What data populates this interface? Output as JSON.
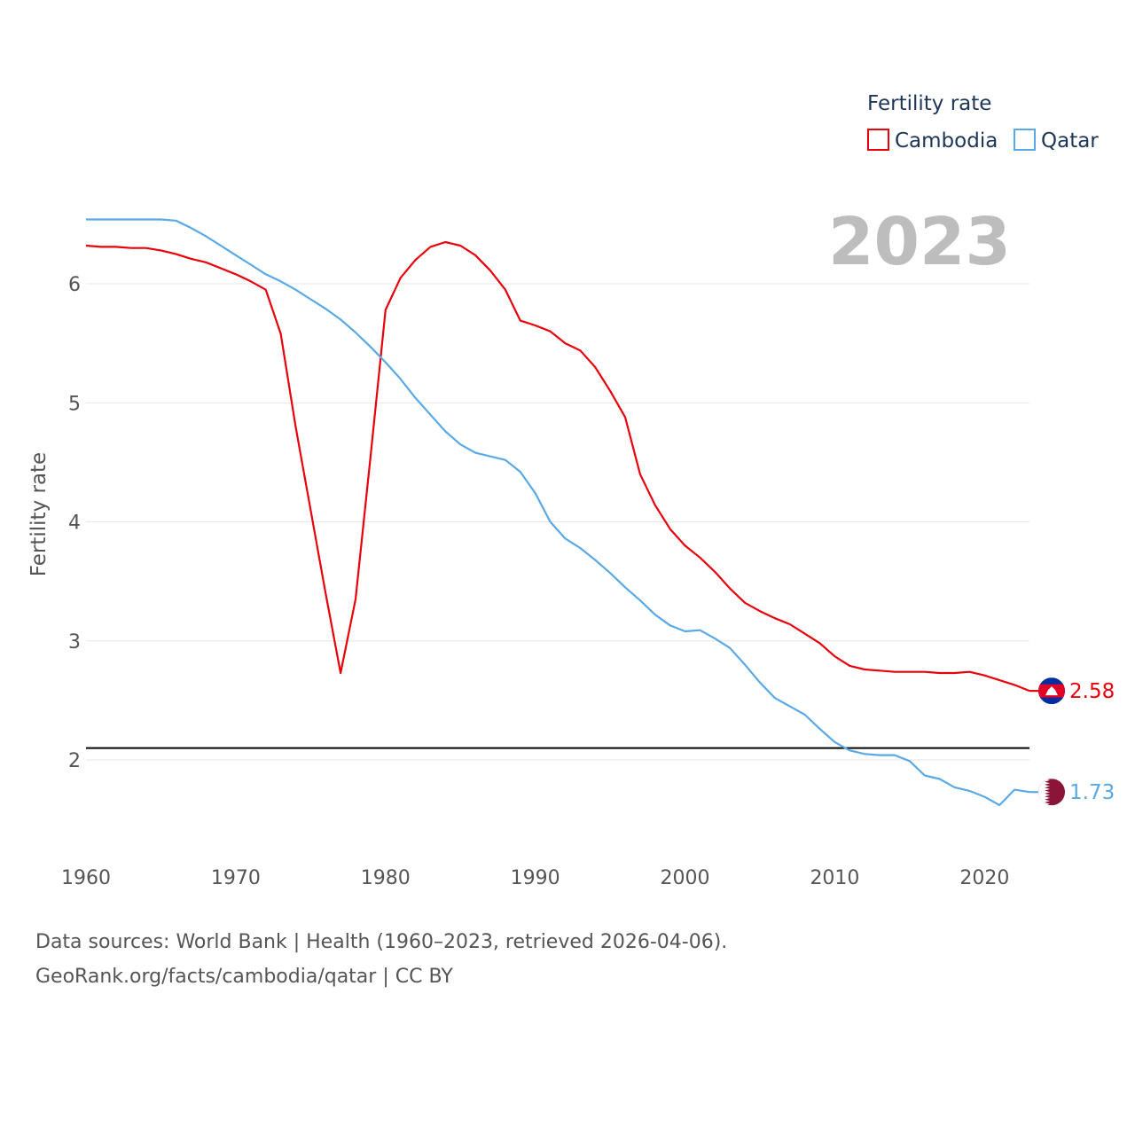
{
  "chart_data": {
    "type": "line",
    "ylabel": "Fertility rate",
    "xlabel": "",
    "xlim": [
      1960,
      2023
    ],
    "ylim": [
      1.4,
      6.9
    ],
    "yticks": [
      2,
      3,
      4,
      5,
      6
    ],
    "xticks": [
      1960,
      1970,
      1980,
      1990,
      2000,
      2010,
      2020
    ],
    "year_label": "2023",
    "legend": {
      "title": "Fertility rate",
      "position": "top-right"
    },
    "reference_line": {
      "y": 2.1,
      "color": "#000000"
    },
    "x": [
      1960,
      1961,
      1962,
      1963,
      1964,
      1965,
      1966,
      1967,
      1968,
      1969,
      1970,
      1971,
      1972,
      1973,
      1974,
      1975,
      1976,
      1977,
      1978,
      1979,
      1980,
      1981,
      1982,
      1983,
      1984,
      1985,
      1986,
      1987,
      1988,
      1989,
      1990,
      1991,
      1992,
      1993,
      1994,
      1995,
      1996,
      1997,
      1998,
      1999,
      2000,
      2001,
      2002,
      2003,
      2004,
      2005,
      2006,
      2007,
      2008,
      2009,
      2010,
      2011,
      2012,
      2013,
      2014,
      2015,
      2016,
      2017,
      2018,
      2019,
      2020,
      2021,
      2022,
      2023
    ],
    "series": [
      {
        "name": "Cambodia",
        "color": "#e8000b",
        "end_label": "2.58",
        "flag": "cambodia-flag",
        "values": [
          6.32,
          6.31,
          6.31,
          6.3,
          6.3,
          6.28,
          6.25,
          6.21,
          6.18,
          6.13,
          6.08,
          6.02,
          5.95,
          5.58,
          4.8,
          4.1,
          3.4,
          2.73,
          3.35,
          4.55,
          5.78,
          6.05,
          6.2,
          6.31,
          6.35,
          6.32,
          6.24,
          6.11,
          5.95,
          5.69,
          5.65,
          5.6,
          5.5,
          5.44,
          5.3,
          5.1,
          4.88,
          4.4,
          4.14,
          3.94,
          3.8,
          3.7,
          3.58,
          3.44,
          3.32,
          3.25,
          3.19,
          3.14,
          3.06,
          2.98,
          2.87,
          2.79,
          2.76,
          2.75,
          2.74,
          2.74,
          2.74,
          2.73,
          2.73,
          2.74,
          2.71,
          2.67,
          2.63,
          2.58
        ]
      },
      {
        "name": "Qatar",
        "color": "#5aa9e6",
        "end_label": "1.73",
        "flag": "qatar-flag",
        "values": [
          6.54,
          6.54,
          6.54,
          6.54,
          6.54,
          6.54,
          6.53,
          6.47,
          6.4,
          6.32,
          6.24,
          6.16,
          6.08,
          6.02,
          5.95,
          5.87,
          5.79,
          5.7,
          5.59,
          5.47,
          5.34,
          5.2,
          5.04,
          4.9,
          4.76,
          4.65,
          4.58,
          4.55,
          4.52,
          4.42,
          4.24,
          4.0,
          3.86,
          3.78,
          3.68,
          3.57,
          3.45,
          3.34,
          3.22,
          3.13,
          3.08,
          3.09,
          3.02,
          2.94,
          2.8,
          2.65,
          2.52,
          2.45,
          2.38,
          2.26,
          2.15,
          2.08,
          2.05,
          2.04,
          2.04,
          1.99,
          1.87,
          1.84,
          1.77,
          1.74,
          1.69,
          1.62,
          1.75,
          1.73
        ]
      }
    ]
  },
  "footer": {
    "line1": "Data sources: World Bank | Health (1960–2023, retrieved 2026-04-06).",
    "line2": "GeoRank.org/facts/cambodia/qatar | CC BY"
  }
}
